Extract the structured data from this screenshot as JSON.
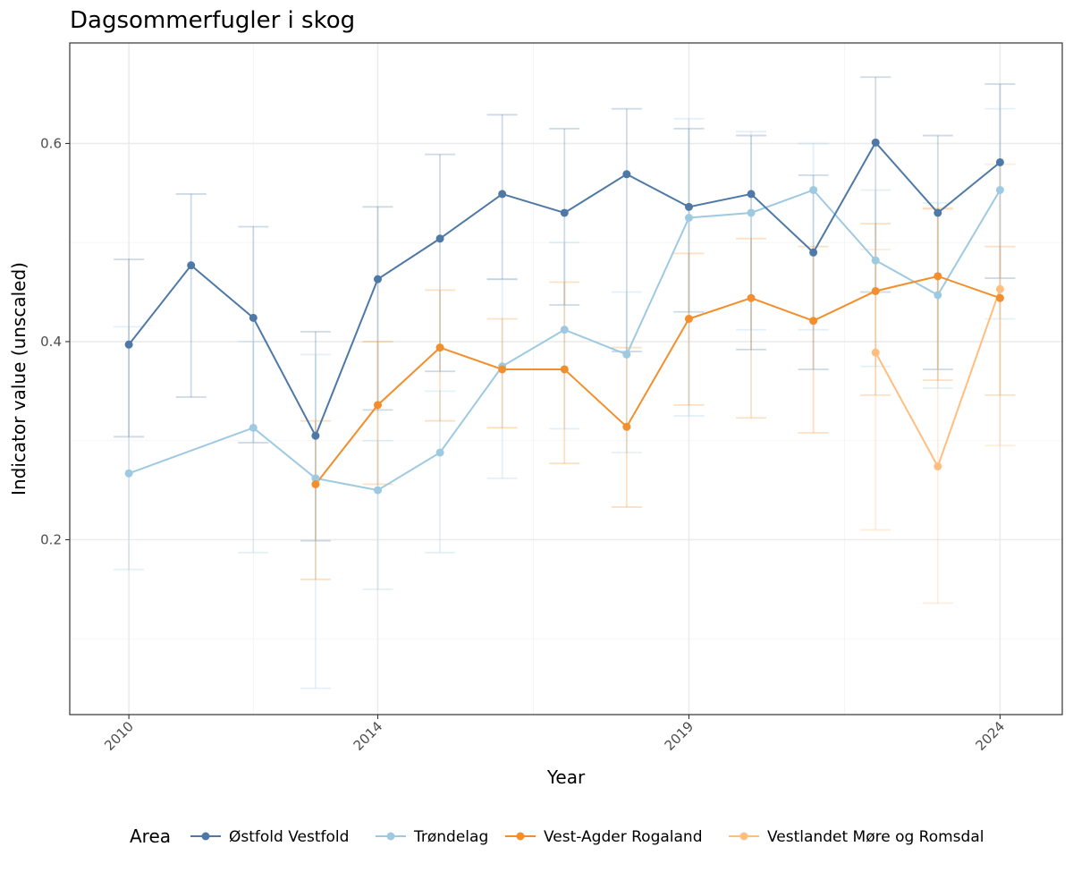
{
  "chart_data": {
    "type": "line",
    "title": "Dagsommerfugler i skog",
    "xlabel": "Year",
    "ylabel": "Indicator value (unscaled)",
    "xlim": [
      2009.05,
      2025.0
    ],
    "ylim": [
      0.0235,
      0.7015
    ],
    "x_ticks": [
      2010,
      2014,
      2019,
      2024
    ],
    "y_ticks": [
      0.2,
      0.4,
      0.6
    ],
    "y_tick_labels": [
      "0.2",
      "0.4",
      "0.6"
    ],
    "grid": true,
    "legend": {
      "title": "Area",
      "position": "bottom"
    },
    "series": [
      {
        "name": "Østfold Vestfold",
        "color": "#4e79a7",
        "points": [
          {
            "x": 2010,
            "y": 0.397,
            "lo": 0.304,
            "hi": 0.483
          },
          {
            "x": 2011,
            "y": 0.477,
            "lo": 0.344,
            "hi": 0.549
          },
          {
            "x": 2012,
            "y": 0.424,
            "lo": 0.298,
            "hi": 0.516
          },
          {
            "x": 2013,
            "y": 0.305,
            "lo": 0.199,
            "hi": 0.41
          },
          {
            "x": 2014,
            "y": 0.463,
            "lo": 0.331,
            "hi": 0.536
          },
          {
            "x": 2015,
            "y": 0.504,
            "lo": 0.37,
            "hi": 0.589
          },
          {
            "x": 2016,
            "y": 0.549,
            "lo": 0.463,
            "hi": 0.629
          },
          {
            "x": 2017,
            "y": 0.53,
            "lo": 0.437,
            "hi": 0.615
          },
          {
            "x": 2018,
            "y": 0.569,
            "lo": 0.39,
            "hi": 0.635
          },
          {
            "x": 2019,
            "y": 0.536,
            "lo": 0.43,
            "hi": 0.615
          },
          {
            "x": 2020,
            "y": 0.549,
            "lo": 0.392,
            "hi": 0.608
          },
          {
            "x": 2021,
            "y": 0.49,
            "lo": 0.372,
            "hi": 0.568
          },
          {
            "x": 2022,
            "y": 0.601,
            "lo": 0.45,
            "hi": 0.667
          },
          {
            "x": 2023,
            "y": 0.53,
            "lo": 0.372,
            "hi": 0.608
          },
          {
            "x": 2024,
            "y": 0.581,
            "lo": 0.464,
            "hi": 0.66
          }
        ]
      },
      {
        "name": "Trøndelag",
        "color": "#9ecae1",
        "points": [
          {
            "x": 2010,
            "y": 0.267,
            "lo": 0.17,
            "hi": 0.415
          },
          {
            "x": 2012,
            "y": 0.313,
            "lo": 0.187,
            "hi": 0.4
          },
          {
            "x": 2013,
            "y": 0.262,
            "lo": 0.05,
            "hi": 0.387
          },
          {
            "x": 2014,
            "y": 0.25,
            "lo": 0.15,
            "hi": 0.3
          },
          {
            "x": 2015,
            "y": 0.288,
            "lo": 0.187,
            "hi": 0.35
          },
          {
            "x": 2016,
            "y": 0.375,
            "lo": 0.262,
            "hi": 0.463
          },
          {
            "x": 2017,
            "y": 0.412,
            "lo": 0.312,
            "hi": 0.5
          },
          {
            "x": 2018,
            "y": 0.387,
            "lo": 0.288,
            "hi": 0.45
          },
          {
            "x": 2019,
            "y": 0.525,
            "lo": 0.325,
            "hi": 0.625
          },
          {
            "x": 2020,
            "y": 0.53,
            "lo": 0.412,
            "hi": 0.612
          },
          {
            "x": 2021,
            "y": 0.553,
            "lo": 0.412,
            "hi": 0.6
          },
          {
            "x": 2022,
            "y": 0.482,
            "lo": 0.375,
            "hi": 0.553
          },
          {
            "x": 2023,
            "y": 0.447,
            "lo": 0.353,
            "hi": 0.54
          },
          {
            "x": 2024,
            "y": 0.553,
            "lo": 0.423,
            "hi": 0.635
          }
        ]
      },
      {
        "name": "Vest-Agder Rogaland",
        "color": "#f28e2b",
        "points": [
          {
            "x": 2013,
            "y": 0.256,
            "lo": 0.16,
            "hi": 0.32
          },
          {
            "x": 2014,
            "y": 0.336,
            "lo": 0.256,
            "hi": 0.4
          },
          {
            "x": 2015,
            "y": 0.394,
            "lo": 0.32,
            "hi": 0.452
          },
          {
            "x": 2016,
            "y": 0.372,
            "lo": 0.313,
            "hi": 0.423
          },
          {
            "x": 2017,
            "y": 0.372,
            "lo": 0.277,
            "hi": 0.46
          },
          {
            "x": 2018,
            "y": 0.314,
            "lo": 0.233,
            "hi": 0.394
          },
          {
            "x": 2019,
            "y": 0.423,
            "lo": 0.336,
            "hi": 0.489
          },
          {
            "x": 2020,
            "y": 0.444,
            "lo": 0.323,
            "hi": 0.504
          },
          {
            "x": 2021,
            "y": 0.421,
            "lo": 0.308,
            "hi": 0.496
          },
          {
            "x": 2022,
            "y": 0.451,
            "lo": 0.346,
            "hi": 0.519
          },
          {
            "x": 2023,
            "y": 0.466,
            "lo": 0.361,
            "hi": 0.534
          },
          {
            "x": 2024,
            "y": 0.444,
            "lo": 0.346,
            "hi": 0.496
          }
        ]
      },
      {
        "name": "Vestlandet Møre og Romsdal",
        "color": "#ffbe7d",
        "points": [
          {
            "x": 2022,
            "y": 0.389,
            "lo": 0.21,
            "hi": 0.493
          },
          {
            "x": 2023,
            "y": 0.274,
            "lo": 0.136,
            "hi": 0.535
          },
          {
            "x": 2024,
            "y": 0.453,
            "lo": 0.295,
            "hi": 0.579
          }
        ]
      }
    ]
  }
}
